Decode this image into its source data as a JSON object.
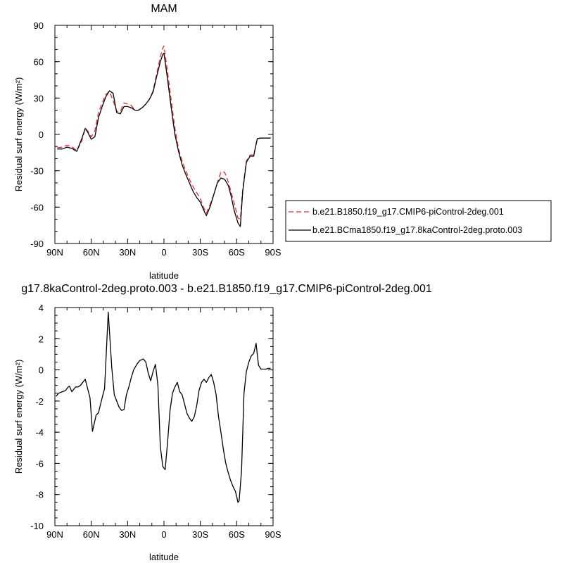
{
  "chart_data": [
    {
      "type": "line",
      "title": "MAM",
      "xlabel": "latitude",
      "ylabel": "Residual surf energy (W/m²)",
      "xlim": [
        90,
        -90
      ],
      "ylim": [
        -90,
        90
      ],
      "x_ticks": [
        90,
        60,
        30,
        0,
        -30,
        -60,
        -90
      ],
      "x_tick_labels": [
        "90N",
        "60N",
        "30N",
        "0",
        "30S",
        "60S",
        "90S"
      ],
      "y_ticks": [
        90,
        60,
        30,
        0,
        -30,
        -60,
        -90
      ],
      "y_tick_labels": [
        "90",
        "60",
        "30",
        "0",
        "-30",
        "-60",
        "-90"
      ],
      "legend_position": "right",
      "x": [
        88,
        84,
        80,
        76,
        72,
        68,
        65,
        63,
        60,
        57,
        54,
        51,
        48,
        45,
        42,
        39,
        36,
        33,
        30,
        27,
        24,
        21,
        18,
        15,
        12,
        9,
        6,
        3,
        1,
        0,
        -3,
        -6,
        -9,
        -12,
        -15,
        -18,
        -21,
        -24,
        -27,
        -30,
        -33,
        -35,
        -38,
        -41,
        -44,
        -47,
        -50,
        -53,
        -55,
        -58,
        -61,
        -63,
        -65,
        -68,
        -71,
        -74,
        -77,
        -80,
        -84,
        -88
      ],
      "series": [
        {
          "name": "b.e21.B1850.f19_g17.CMIP6-piControl-2deg.001",
          "color": "#e8292e",
          "dash": "dashed",
          "values": [
            -11,
            -10.5,
            -9,
            -10,
            -13.5,
            -6,
            5,
            3,
            -2,
            3,
            18,
            26,
            33,
            35.5,
            28,
            19,
            19,
            26,
            25,
            24,
            20,
            20,
            22,
            25,
            29,
            36,
            50,
            64,
            71,
            73,
            51,
            28,
            5,
            -12,
            -22,
            -30,
            -37,
            -43,
            -48,
            -53,
            -61,
            -65,
            -58,
            -50,
            -40,
            -31,
            -31,
            -39,
            -46,
            -57,
            -69,
            -70,
            -45,
            -22,
            -17,
            -17,
            -3.5,
            -3,
            -3,
            -3
          ]
        },
        {
          "name": "b.e21.BCma1850.f19_g17.8kaControl-2deg.proto.003",
          "color": "#000000",
          "dash": "solid",
          "values": [
            -12,
            -12,
            -10.5,
            -11.5,
            -14,
            -4,
            5,
            2,
            -4,
            -2,
            14,
            23,
            31,
            36,
            34,
            18,
            17,
            23,
            23,
            22,
            20,
            20,
            22,
            25,
            29,
            35,
            48,
            60,
            66,
            67,
            45,
            22,
            0,
            -14,
            -25,
            -33,
            -40,
            -47,
            -52,
            -56,
            -63,
            -67,
            -60,
            -50,
            -40,
            -36,
            -37,
            -42,
            -49,
            -63,
            -73,
            -76,
            -47,
            -23,
            -18,
            -18,
            -3.5,
            -3,
            -3,
            -3
          ]
        }
      ]
    },
    {
      "type": "line",
      "title": "g17.8kaControl-2deg.proto.003 - b.e21.B1850.f19_g17.CMIP6-piControl-2deg.001",
      "xlabel": "latitude",
      "ylabel": "Residual surf energy (W/m²)",
      "xlim": [
        90,
        -90
      ],
      "ylim": [
        -10,
        4
      ],
      "x_ticks": [
        90,
        60,
        30,
        0,
        -30,
        -60,
        -90
      ],
      "x_tick_labels": [
        "90N",
        "60N",
        "30N",
        "0",
        "30S",
        "60S",
        "90S"
      ],
      "y_ticks": [
        4,
        2,
        0,
        -2,
        -4,
        -6,
        -8,
        -10
      ],
      "y_tick_labels": [
        "4",
        "2",
        "0",
        "-2",
        "-4",
        "-6",
        "-8",
        "-10"
      ],
      "x": [
        89,
        87,
        84,
        82,
        81,
        79,
        78,
        76,
        73,
        71,
        69,
        67,
        65,
        63,
        61,
        59,
        56,
        54,
        52,
        49,
        46,
        43,
        41,
        39,
        37,
        35,
        33,
        31,
        29,
        27,
        25,
        22,
        20,
        17,
        15,
        13,
        11,
        9,
        7,
        5,
        3,
        1,
        -1,
        -3,
        -5,
        -7,
        -9,
        -11,
        -13,
        -15,
        -17,
        -19,
        -21,
        -23,
        -25,
        -27,
        -29,
        -31,
        -33,
        -35,
        -37,
        -39,
        -41,
        -43,
        -45,
        -47,
        -49,
        -51,
        -53,
        -55,
        -57,
        -59,
        -61,
        -62,
        -64,
        -66,
        -68,
        -70,
        -72,
        -74,
        -76,
        -78,
        -80,
        -82,
        -84,
        -86,
        -88
      ],
      "series": [
        {
          "name": "",
          "color": "#000000",
          "dash": "solid",
          "values": [
            -1.7,
            -1.5,
            -1.4,
            -1.35,
            -1.3,
            -1.1,
            -1.05,
            -1.4,
            -1.1,
            -1.1,
            -1.0,
            -0.8,
            -0.6,
            -1.2,
            -1.8,
            -3.95,
            -2.9,
            -2.75,
            -2.1,
            -1.2,
            3.7,
            0.1,
            -1.6,
            -2.0,
            -2.4,
            -2.6,
            -2.55,
            -1.6,
            -1.1,
            -0.5,
            0.0,
            0.4,
            0.6,
            0.7,
            0.5,
            -0.2,
            -0.7,
            -0.1,
            0.35,
            -1.0,
            -4.9,
            -6.2,
            -6.4,
            -4.6,
            -2.6,
            -1.5,
            -1.1,
            -0.8,
            -1.4,
            -1.6,
            -2.2,
            -2.8,
            -3.1,
            -3.3,
            -3.0,
            -2.3,
            -1.3,
            -0.8,
            -0.6,
            -0.8,
            -0.5,
            -0.3,
            -0.8,
            -1.6,
            -3.0,
            -4.0,
            -5.1,
            -6.0,
            -6.6,
            -7.1,
            -7.5,
            -7.8,
            -8.5,
            -8.4,
            -6.5,
            -1.5,
            -0.1,
            0.5,
            0.9,
            1.05,
            1.7,
            0.3,
            0.05,
            0.05,
            0.05,
            0.1,
            0.1
          ]
        }
      ]
    }
  ]
}
